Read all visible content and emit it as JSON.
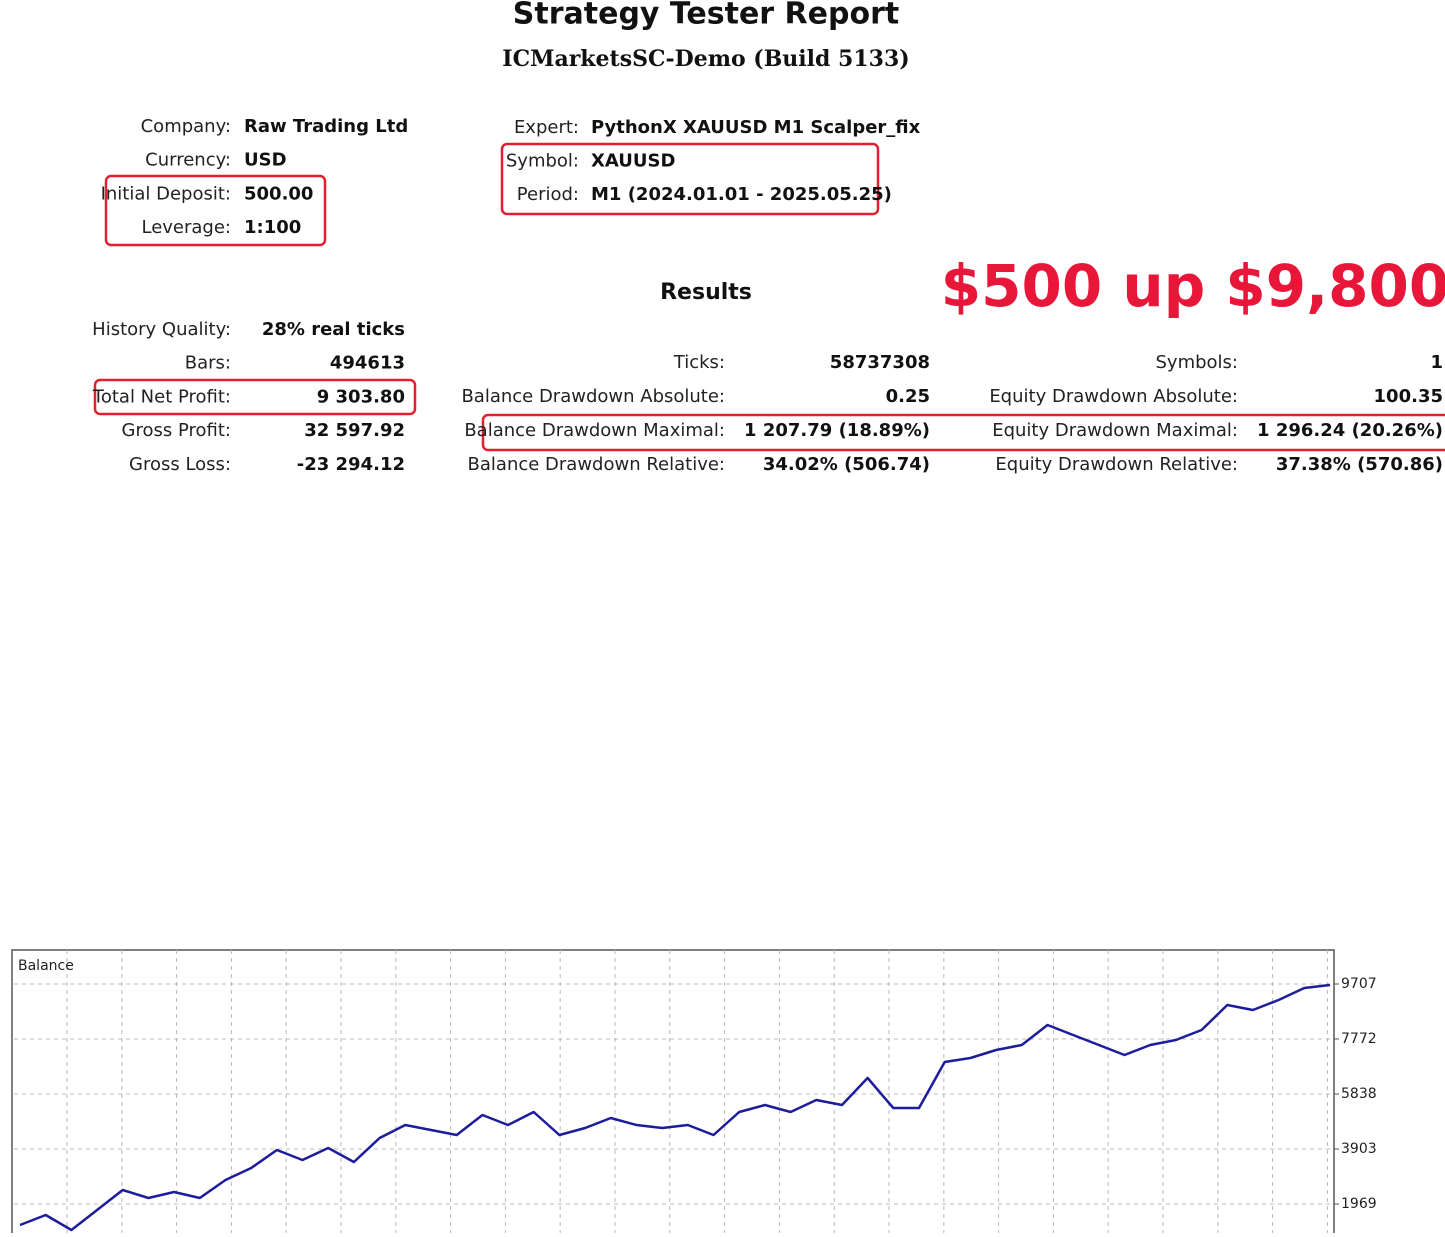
{
  "header": {
    "title": "Strategy Tester Report",
    "subtitle": "ICMarketsSC-Demo (Build 5133)"
  },
  "settings": {
    "left": [
      {
        "label": "Company:",
        "value": "Raw Trading Ltd"
      },
      {
        "label": "Currency:",
        "value": "USD"
      },
      {
        "label": "Initial Deposit:",
        "value": "500.00"
      },
      {
        "label": "Leverage:",
        "value": "1:100"
      }
    ],
    "right": [
      {
        "label": "Expert:",
        "value": "PythonX XAUUSD M1 Scalper_fix"
      },
      {
        "label": "Symbol:",
        "value": "XAUUSD"
      },
      {
        "label": "Period:",
        "value": "M1 (2024.01.01 - 2025.05.25)"
      }
    ]
  },
  "results": {
    "heading": "Results",
    "annotation": "$500 up $9,800",
    "left": [
      {
        "label": "History Quality:",
        "value": "28% real ticks"
      },
      {
        "label": "Bars:",
        "value": "494613"
      },
      {
        "label": "Total Net Profit:",
        "value": "9 303.80"
      },
      {
        "label": "Gross Profit:",
        "value": "32 597.92"
      },
      {
        "label": "Gross Loss:",
        "value": "-23 294.12"
      }
    ],
    "middle": [
      {
        "label": "Ticks:",
        "value": "58737308"
      },
      {
        "label": "Balance Drawdown Absolute:",
        "value": "0.25"
      },
      {
        "label": "Balance Drawdown Maximal:",
        "value": "1 207.79 (18.89%)"
      },
      {
        "label": "Balance Drawdown Relative:",
        "value": "34.02% (506.74)"
      }
    ],
    "right": [
      {
        "label": "Symbols:",
        "value": "1"
      },
      {
        "label": "Equity Drawdown Absolute:",
        "value": "100.35"
      },
      {
        "label": "Equity Drawdown Maximal:",
        "value": "1 296.24 (20.26%)"
      },
      {
        "label": "Equity Drawdown Relative:",
        "value": "37.38% (570.86)"
      }
    ]
  },
  "chart_data": {
    "type": "line",
    "title": "Balance",
    "color": "#1c1c9c",
    "values": [
      1231,
      1583,
      1055,
      1759,
      2462,
      2181,
      2392,
      2181,
      2814,
      3236,
      3869,
      3517,
      3939,
      3447,
      4291,
      4748,
      4572,
      4396,
      5100,
      4748,
      5205,
      4396,
      4643,
      4994,
      4748,
      4643,
      4748,
      4396,
      5205,
      5451,
      5205,
      5627,
      5451,
      6401,
      5346,
      5346,
      6964,
      7104,
      7386,
      7562,
      8265,
      7913,
      7562,
      7210,
      7562,
      7737,
      8089,
      8968,
      8793,
      9144,
      9566,
      9672
    ],
    "ylim": [
      984,
      10903
    ],
    "yticks": [
      1969,
      3903,
      5838,
      7772,
      9707
    ],
    "grid": true
  }
}
